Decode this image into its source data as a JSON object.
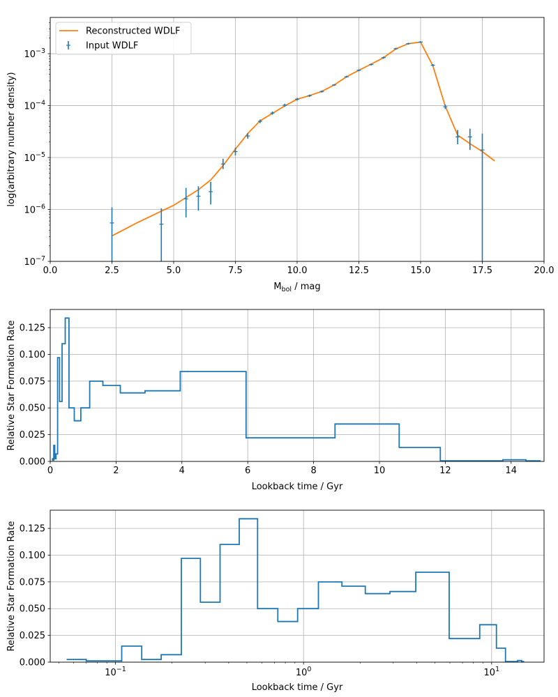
{
  "chart_data": [
    {
      "type": "line",
      "id": "wdlf",
      "xlabel_main": "M",
      "xlabel_sub": "bol",
      "xlabel_rest": " / mag",
      "ylabel": "log(arbitrary number density)",
      "xlim": [
        0,
        20
      ],
      "ylim": [
        1e-07,
        0.005
      ],
      "yscale": "log",
      "grid": true,
      "legend_position": "upper-left",
      "xticks": [
        "0.0",
        "2.5",
        "5.0",
        "7.5",
        "10.0",
        "12.5",
        "15.0",
        "17.5",
        "20.0"
      ],
      "xtick_values": [
        0,
        2.5,
        5,
        7.5,
        10,
        12.5,
        15,
        17.5,
        20
      ],
      "yticks": [
        {
          "value": 1e-07,
          "base": "10",
          "exp": "−7"
        },
        {
          "value": 1e-06,
          "base": "10",
          "exp": "−6"
        },
        {
          "value": 1e-05,
          "base": "10",
          "exp": "−5"
        },
        {
          "value": 0.0001,
          "base": "10",
          "exp": "−4"
        },
        {
          "value": 0.001,
          "base": "10",
          "exp": "−3"
        }
      ],
      "series": [
        {
          "name": "Reconstructed WDLF",
          "color": "#ff7f0e",
          "kind": "line",
          "x": [
            2.5,
            3.5,
            4.5,
            5.0,
            5.5,
            6.0,
            6.5,
            7.0,
            7.5,
            8.0,
            8.5,
            9.0,
            9.5,
            10.0,
            10.5,
            11.0,
            11.5,
            12.0,
            12.5,
            13.0,
            13.5,
            14.0,
            14.5,
            15.0,
            15.5,
            16.0,
            16.5,
            17.0,
            17.5,
            18.0
          ],
          "y": [
            3.1e-07,
            5.5e-07,
            9.3e-07,
            1.2e-06,
            1.7e-06,
            2.4e-06,
            3.7e-06,
            7e-06,
            1.45e-05,
            2.9e-05,
            5.1e-05,
            7.1e-05,
            9.9e-05,
            0.000133,
            0.000156,
            0.000188,
            0.00025,
            0.00036,
            0.00048,
            0.00063,
            0.00084,
            0.00124,
            0.00156,
            0.00168,
            0.00058,
            9.7e-05,
            2.7e-05,
            1.85e-05,
            1.3e-05,
            8.6e-06
          ]
        },
        {
          "name": "Input WDLF",
          "color": "#1f77b4",
          "kind": "errorbar",
          "x": [
            2.5,
            4.5,
            5.5,
            6.0,
            6.5,
            7.0,
            7.5,
            8.0,
            8.5,
            9.0,
            9.5,
            10.0,
            10.5,
            11.0,
            11.5,
            12.0,
            12.5,
            13.0,
            13.5,
            14.0,
            14.5,
            15.0,
            15.5,
            16.0,
            16.5,
            17.0,
            17.5
          ],
          "y": [
            5.5e-07,
            5.2e-07,
            1.6e-06,
            1.8e-06,
            2.2e-06,
            7.5e-06,
            1.3e-05,
            2.6e-05,
            5e-05,
            7.2e-05,
            0.000102,
            0.000133,
            0.000155,
            0.000187,
            0.00025,
            0.00036,
            0.00048,
            0.00062,
            0.00084,
            0.00125,
            0.00156,
            0.00168,
            0.0006,
            9.5e-05,
            2.5e-05,
            2.5e-05,
            1.4e-05
          ],
          "ylo": [
            1e-07,
            1e-07,
            7e-07,
            9.5e-07,
            1.25e-06,
            6e-06,
            1.1e-05,
            2.3e-05,
            4.6e-05,
            6.7e-05,
            9.5e-05,
            0.000125,
            0.000147,
            0.000178,
            0.00024,
            0.000345,
            0.00046,
            0.000595,
            0.0008,
            0.0012,
            0.0015,
            0.00162,
            0.00057,
            8.6e-05,
            1.8e-05,
            1.4e-05,
            1e-07
          ],
          "yhi": [
            1.1e-06,
            1.05e-06,
            2.6e-06,
            2.8e-06,
            3.4e-06,
            9.5e-06,
            1.55e-05,
            2.95e-05,
            5.4e-05,
            7.7e-05,
            0.000109,
            0.000141,
            0.000163,
            0.000196,
            0.00026,
            0.000375,
            0.0005,
            0.000645,
            0.00088,
            0.0013,
            0.00162,
            0.00174,
            0.00063,
            0.000105,
            3.4e-05,
            3.6e-05,
            2.9e-05
          ]
        }
      ]
    },
    {
      "type": "line",
      "id": "sfr-linear",
      "xlabel": "Lookback time / Gyr",
      "ylabel": "Relative Star Formation Rate",
      "xlim": [
        0,
        15
      ],
      "ylim": [
        0,
        0.142
      ],
      "xscale": "linear",
      "grid": true,
      "xticks": [
        "0",
        "2",
        "4",
        "6",
        "8",
        "10",
        "12",
        "14"
      ],
      "xtick_values": [
        0,
        2,
        4,
        6,
        8,
        10,
        12,
        14
      ],
      "yticks": [
        "0.000",
        "0.025",
        "0.050",
        "0.075",
        "0.100",
        "0.125"
      ],
      "ytick_values": [
        0,
        0.025,
        0.05,
        0.075,
        0.1,
        0.125
      ],
      "series": [
        {
          "color": "#1f77b4",
          "kind": "step",
          "edges": [
            0.055,
            0.07,
            0.108,
            0.138,
            0.175,
            0.224,
            0.283,
            0.36,
            0.455,
            0.57,
            0.73,
            0.93,
            1.2,
            1.6,
            2.13,
            2.88,
            3.95,
            5.95,
            8.65,
            10.6,
            11.85,
            13.75,
            14.45,
            14.9
          ],
          "values": [
            0.0025,
            0.0012,
            0.015,
            0.0025,
            0.007,
            0.097,
            0.056,
            0.11,
            0.134,
            0.05,
            0.038,
            0.05,
            0.075,
            0.071,
            0.064,
            0.066,
            0.084,
            0.022,
            0.035,
            0.013,
            0.0005,
            0.0015,
            0.0005
          ]
        }
      ]
    },
    {
      "type": "line",
      "id": "sfr-log",
      "xlabel": "Lookback time / Gyr",
      "ylabel": "Relative Star Formation Rate",
      "xlim": [
        0.045,
        19
      ],
      "ylim": [
        0,
        0.142
      ],
      "xscale": "log",
      "grid": true,
      "xticks": [
        {
          "value": 0.1,
          "base": "10",
          "exp": "−1"
        },
        {
          "value": 1,
          "base": "10",
          "exp": "0"
        },
        {
          "value": 10,
          "base": "10",
          "exp": "1"
        }
      ],
      "yticks": [
        "0.000",
        "0.025",
        "0.050",
        "0.075",
        "0.100",
        "0.125"
      ],
      "ytick_values": [
        0,
        0.025,
        0.05,
        0.075,
        0.1,
        0.125
      ],
      "series": [
        {
          "color": "#1f77b4",
          "kind": "step",
          "edges": [
            0.055,
            0.07,
            0.108,
            0.138,
            0.175,
            0.224,
            0.283,
            0.36,
            0.455,
            0.57,
            0.73,
            0.93,
            1.2,
            1.6,
            2.13,
            2.88,
            3.95,
            5.95,
            8.65,
            10.6,
            11.85,
            13.75,
            14.45,
            14.9
          ],
          "values": [
            0.0025,
            0.0012,
            0.015,
            0.0025,
            0.007,
            0.097,
            0.056,
            0.11,
            0.134,
            0.05,
            0.038,
            0.05,
            0.075,
            0.071,
            0.064,
            0.066,
            0.084,
            0.022,
            0.035,
            0.013,
            0.0005,
            0.0015,
            0.0005
          ]
        }
      ]
    }
  ]
}
